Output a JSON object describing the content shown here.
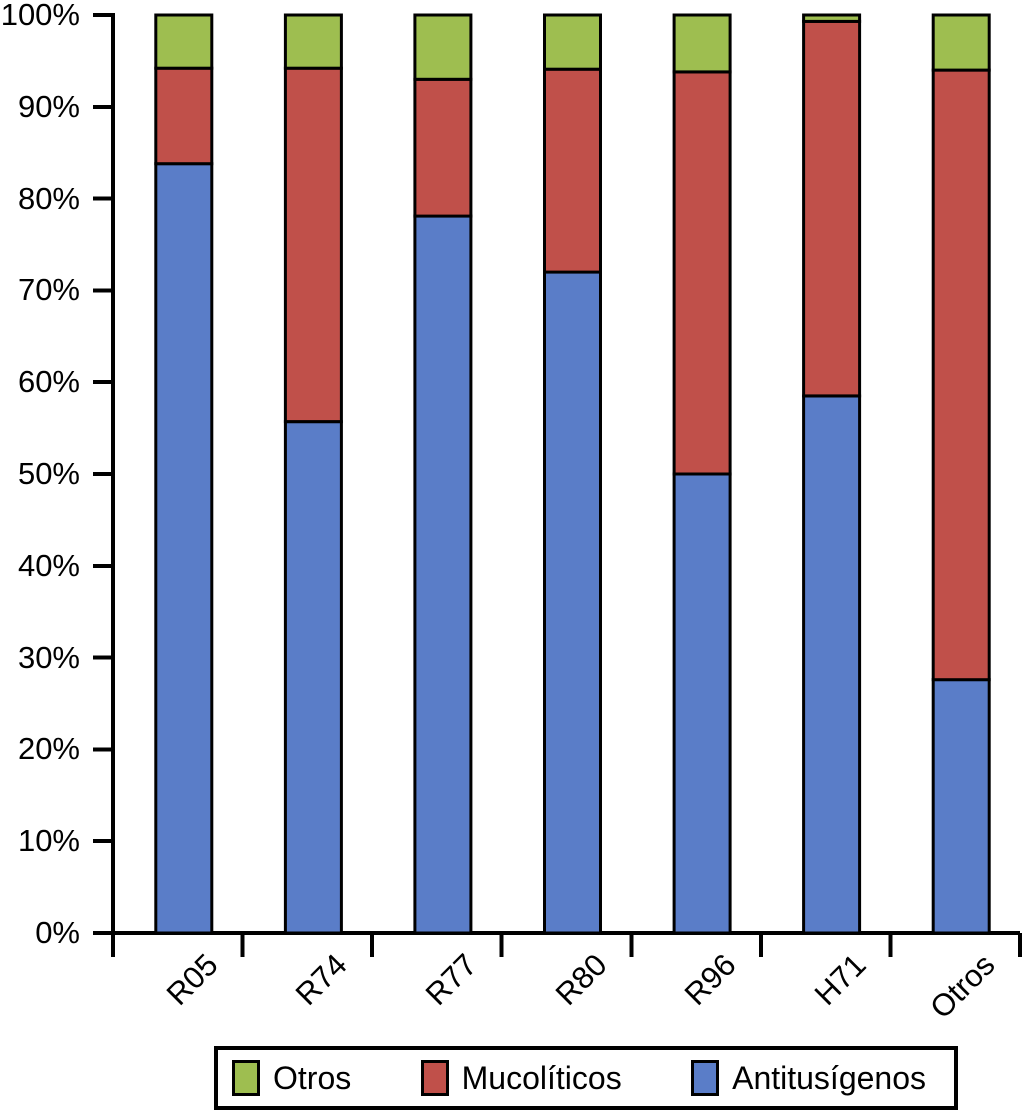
{
  "chart_data": {
    "type": "bar",
    "variant": "stacked-100-percent",
    "title": "",
    "xlabel": "",
    "ylabel": "",
    "grid": false,
    "background_color": "#ffffff",
    "axis_color": "#000000",
    "bar_border_color": "#000000",
    "categories": [
      "R05",
      "R74",
      "R77",
      "R80",
      "R96",
      "H71",
      "Otros"
    ],
    "series": [
      {
        "name": "Antitusígenos",
        "color": "#5a7dc8",
        "values": [
          83.8,
          55.7,
          78.1,
          72.0,
          50.0,
          58.5,
          27.6
        ]
      },
      {
        "name": "Mucolíticos",
        "color": "#c0504a",
        "values": [
          10.4,
          38.5,
          14.9,
          22.1,
          43.8,
          40.8,
          66.4
        ]
      },
      {
        "name": "Otros",
        "color": "#9ebe50",
        "values": [
          5.8,
          5.8,
          7.0,
          5.9,
          6.2,
          0.7,
          6.0
        ]
      }
    ],
    "ylim": [
      0,
      100
    ],
    "y_ticks": [
      "0%",
      "10%",
      "20%",
      "30%",
      "40%",
      "50%",
      "60%",
      "70%",
      "80%",
      "90%",
      "100%"
    ],
    "legend_position": "bottom",
    "legend_items": [
      {
        "label": "Otros",
        "color": "#9ebe50"
      },
      {
        "label": "Mucolíticos",
        "color": "#c0504a"
      },
      {
        "label": "Antitusígenos",
        "color": "#5a7dc8"
      }
    ]
  }
}
